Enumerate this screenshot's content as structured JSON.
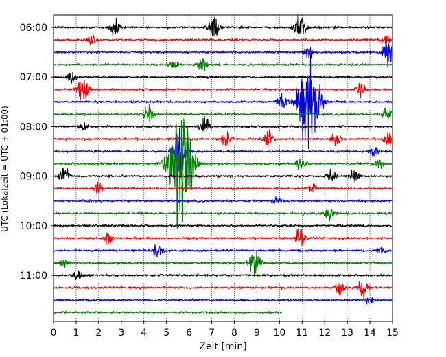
{
  "chart_data": {
    "type": "line",
    "title": "",
    "xlabel": "Zeit  [min]",
    "ylabel": "UTC (Lokalzeit = UTC + 01:00)",
    "xlim": [
      0,
      15
    ],
    "x_ticks": [
      0,
      1,
      2,
      3,
      4,
      5,
      6,
      7,
      8,
      9,
      10,
      11,
      12,
      13,
      14,
      15
    ],
    "y_tick_labels": [
      "06:00",
      "07:00",
      "08:00",
      "09:00",
      "10:00",
      "11:00"
    ],
    "trace_interval_min": 15,
    "first_trace_utc": "06:00",
    "trace_colors": [
      "#000000",
      "#ff0000",
      "#0000ff",
      "#008000"
    ],
    "grid": "vertical dotted at each minute",
    "traces": [
      {
        "start": "06:00",
        "color": "#000000",
        "end_min": 15,
        "events": [
          [
            2.7,
            0.5
          ],
          [
            7.1,
            0.8
          ],
          [
            10.9,
            0.8
          ]
        ]
      },
      {
        "start": "06:15",
        "color": "#ff0000",
        "end_min": 15,
        "events": [
          [
            1.7,
            0.3
          ],
          [
            14.7,
            0.3
          ]
        ]
      },
      {
        "start": "06:30",
        "color": "#0000ff",
        "end_min": 15,
        "events": [
          [
            11.3,
            0.4
          ],
          [
            14.8,
            0.9
          ]
        ]
      },
      {
        "start": "06:45",
        "color": "#008000",
        "end_min": 15,
        "events": [
          [
            5.3,
            0.3
          ],
          [
            6.6,
            0.4
          ]
        ]
      },
      {
        "start": "07:00",
        "color": "#000000",
        "end_min": 15,
        "events": [
          [
            0.8,
            0.4
          ]
        ]
      },
      {
        "start": "07:15",
        "color": "#ff0000",
        "end_min": 15,
        "events": [
          [
            1.3,
            0.8
          ],
          [
            13.6,
            0.4
          ]
        ]
      },
      {
        "start": "07:30",
        "color": "#0000ff",
        "end_min": 15,
        "events": [
          [
            10.1,
            0.5
          ],
          [
            11.3,
            3.5
          ]
        ]
      },
      {
        "start": "07:45",
        "color": "#008000",
        "end_min": 15,
        "events": [
          [
            4.2,
            0.5
          ],
          [
            14.8,
            0.5
          ]
        ]
      },
      {
        "start": "08:00",
        "color": "#000000",
        "end_min": 15,
        "events": [
          [
            1.3,
            0.3
          ],
          [
            6.7,
            0.6
          ]
        ]
      },
      {
        "start": "08:15",
        "color": "#ff0000",
        "end_min": 15,
        "events": [
          [
            7.6,
            0.5
          ],
          [
            9.5,
            0.5
          ],
          [
            12.5,
            0.5
          ],
          [
            14.8,
            0.4
          ]
        ]
      },
      {
        "start": "08:30",
        "color": "#0000ff",
        "end_min": 15,
        "events": [
          [
            5.6,
            1.5
          ],
          [
            14.2,
            0.3
          ]
        ]
      },
      {
        "start": "08:45",
        "color": "#008000",
        "end_min": 15,
        "events": [
          [
            5.6,
            4.5
          ],
          [
            10.9,
            0.4
          ],
          [
            14.4,
            0.3
          ]
        ]
      },
      {
        "start": "09:00",
        "color": "#000000",
        "end_min": 15,
        "events": [
          [
            0.5,
            0.6
          ],
          [
            12.3,
            0.4
          ],
          [
            13.3,
            0.4
          ]
        ]
      },
      {
        "start": "09:15",
        "color": "#ff0000",
        "end_min": 15,
        "events": [
          [
            2.0,
            0.4
          ],
          [
            11.5,
            0.3
          ]
        ]
      },
      {
        "start": "09:30",
        "color": "#0000ff",
        "end_min": 15,
        "events": [
          [
            9.9,
            0.3
          ]
        ]
      },
      {
        "start": "09:45",
        "color": "#008000",
        "end_min": 15,
        "events": [
          [
            12.2,
            0.4
          ]
        ]
      },
      {
        "start": "10:00",
        "color": "#000000",
        "end_min": 15,
        "events": []
      },
      {
        "start": "10:15",
        "color": "#ff0000",
        "end_min": 15,
        "events": [
          [
            2.4,
            0.4
          ],
          [
            10.9,
            0.6
          ]
        ]
      },
      {
        "start": "10:30",
        "color": "#0000ff",
        "end_min": 15,
        "events": [
          [
            4.6,
            0.5
          ],
          [
            14.5,
            0.3
          ]
        ]
      },
      {
        "start": "10:45",
        "color": "#008000",
        "end_min": 15,
        "events": [
          [
            0.5,
            0.3
          ],
          [
            8.9,
            0.8
          ]
        ]
      },
      {
        "start": "11:00",
        "color": "#000000",
        "end_min": 15,
        "events": [
          [
            1.1,
            0.3
          ]
        ]
      },
      {
        "start": "11:15",
        "color": "#ff0000",
        "end_min": 15,
        "events": [
          [
            12.7,
            0.5
          ],
          [
            13.7,
            0.6
          ]
        ]
      },
      {
        "start": "11:30",
        "color": "#0000ff",
        "end_min": 15,
        "events": [
          [
            14.0,
            0.3
          ]
        ]
      },
      {
        "start": "11:45",
        "color": "#008000",
        "end_min": 10.1,
        "events": []
      }
    ]
  }
}
